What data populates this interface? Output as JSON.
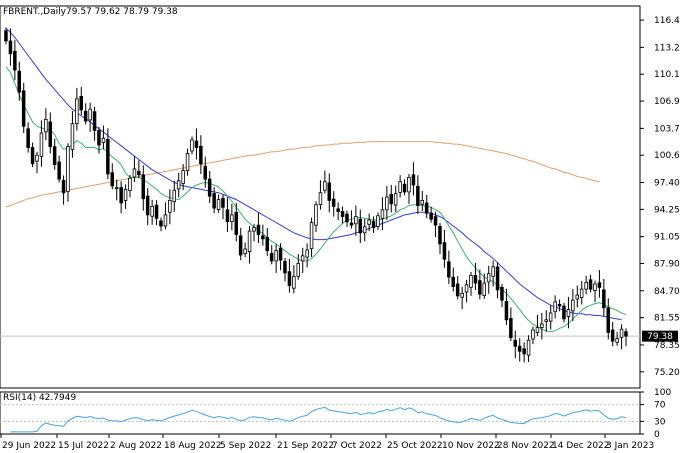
{
  "header": {
    "symbol": "FBRENT.,Daily",
    "ohlc": "79.57 79.62 78.79 79.38"
  },
  "rsi_header": "RSI(14) 42.7949",
  "current_price_label": "79.38",
  "colors": {
    "ma_fast": "#3cb371",
    "ma_slow": "#3a3ad8",
    "ma_long": "#e0a070",
    "rsi_line": "#4aa3df",
    "candle_bull": "#ffffff",
    "candle_bear": "#000000"
  },
  "chart_data": {
    "type": "candlestick",
    "x_labels": [
      "29 Jun 2022",
      "15 Jul 2022",
      "2 Aug 2022",
      "18 Aug 2022",
      "5 Sep 2022",
      "21 Sep 2022",
      "7 Oct 2022",
      "25 Oct 2022",
      "10 Nov 2022",
      "28 Nov 2022",
      "14 Dec 2022",
      "3 Jan 2023"
    ],
    "price_ticks": [
      "116.45",
      "113.25",
      "110.10",
      "106.95",
      "103.75",
      "100.60",
      "97.40",
      "94.25",
      "91.05",
      "87.90",
      "84.70",
      "81.55",
      "78.35",
      "75.20"
    ],
    "price_ylim": [
      73.3,
      118.1
    ],
    "rsi_ticks": [
      "100",
      "70",
      "30",
      "0"
    ],
    "rsi_ylim": [
      0,
      100
    ],
    "last_price": 79.38,
    "closes": [
      114.0,
      112.5,
      110.6,
      108.0,
      104.0,
      101.5,
      99.6,
      100.6,
      103.2,
      104.8,
      101.6,
      99.5,
      97.8,
      96.2,
      101.6,
      104.3,
      107.2,
      105.9,
      104.6,
      106.0,
      103.5,
      101.8,
      102.6,
      98.4,
      97.0,
      96.8,
      95.0,
      96.6,
      97.9,
      99.0,
      98.3,
      95.5,
      93.6,
      94.6,
      93.2,
      92.3,
      93.6,
      95.3,
      96.5,
      97.6,
      98.8,
      100.8,
      102.4,
      101.5,
      99.6,
      97.8,
      95.8,
      94.4,
      95.4,
      94.5,
      92.8,
      93.6,
      91.3,
      88.9,
      89.6,
      91.7,
      92.1,
      91.3,
      90.8,
      89.4,
      88.2,
      89.4,
      88.3,
      86.8,
      85.3,
      86.4,
      87.9,
      88.8,
      89.5,
      92.7,
      94.8,
      96.2,
      97.5,
      95.3,
      94.6,
      94.0,
      93.4,
      92.8,
      92.4,
      93.4,
      91.5,
      92.2,
      93.0,
      92.1,
      93.5,
      94.2,
      95.7,
      94.9,
      96.1,
      97.5,
      96.3,
      98.0,
      97.1,
      94.7,
      95.3,
      93.8,
      93.1,
      92.4,
      90.2,
      88.4,
      86.3,
      85.2,
      84.1,
      84.4,
      85.4,
      86.5,
      85.6,
      84.3,
      85.6,
      86.7,
      87.5,
      84.8,
      83.6,
      81.3,
      79.2,
      78.2,
      77.6,
      77.3,
      78.9,
      80.1,
      80.4,
      80.8,
      81.3,
      82.1,
      83.4,
      82.9,
      81.4,
      82.5,
      83.6,
      84.2,
      84.9,
      85.7,
      84.9,
      85.5,
      85.1,
      82.7,
      79.8,
      78.8,
      79.1,
      80.2,
      79.38
    ],
    "sma_fast": [
      111.0,
      110.3,
      109.0,
      107.7,
      106.5,
      105.5,
      104.5,
      104.0,
      103.8,
      103.6,
      103.6,
      103.0,
      102.0,
      101.3,
      101.5,
      101.8,
      102.3,
      102.0,
      101.5,
      101.5,
      101.5,
      101.2,
      101.4,
      100.9,
      100.4,
      100.0,
      99.5,
      98.5,
      98.0,
      98.0,
      98.0,
      97.7,
      97.4,
      97.0,
      96.6,
      96.1,
      95.8,
      95.6,
      95.5,
      95.4,
      95.8,
      96.3,
      96.8,
      97.1,
      97.3,
      97.4,
      97.3,
      97.1,
      96.9,
      96.4,
      95.8,
      95.2,
      94.5,
      93.8,
      93.1,
      92.6,
      92.2,
      91.8,
      91.4,
      90.9,
      90.5,
      90.2,
      89.8,
      89.4,
      89.0,
      88.7,
      88.4,
      88.2,
      88.2,
      88.5,
      89.0,
      89.6,
      90.3,
      91.0,
      91.6,
      92.1,
      92.6,
      93.0,
      93.1,
      93.3,
      93.3,
      93.2,
      93.1,
      93.0,
      93.0,
      93.1,
      93.3,
      93.5,
      93.8,
      94.2,
      94.4,
      94.7,
      94.8,
      94.8,
      94.7,
      94.6,
      94.5,
      94.2,
      93.9,
      93.2,
      92.3,
      91.5,
      90.5,
      89.6,
      88.7,
      88.0,
      87.4,
      86.8,
      86.3,
      86.0,
      85.8,
      85.3,
      84.9,
      84.4,
      83.8,
      83.2,
      82.5,
      81.8,
      81.2,
      80.8,
      80.5,
      80.2,
      80.0,
      79.9,
      80.0,
      80.3,
      80.5,
      80.9,
      81.4,
      81.9,
      82.4,
      82.8,
      83.0,
      83.2,
      83.3,
      83.1,
      82.8,
      82.6,
      82.4,
      82.1,
      81.9
    ],
    "sma_slow": [
      115.5,
      115.0,
      114.4,
      113.7,
      113.0,
      112.3,
      111.6,
      110.9,
      110.2,
      109.5,
      108.9,
      108.3,
      107.7,
      107.1,
      106.5,
      106.0,
      105.6,
      105.2,
      104.9,
      104.5,
      104.1,
      103.7,
      103.3,
      102.9,
      102.5,
      102.1,
      101.7,
      101.3,
      100.9,
      100.5,
      100.1,
      99.7,
      99.3,
      98.9,
      98.6,
      98.3,
      98.0,
      97.7,
      97.4,
      97.2,
      97.0,
      96.9,
      96.8,
      96.7,
      96.6,
      96.5,
      96.4,
      96.3,
      96.2,
      96.0,
      95.8,
      95.6,
      95.4,
      95.1,
      94.8,
      94.5,
      94.2,
      93.9,
      93.6,
      93.3,
      93.0,
      92.7,
      92.4,
      92.1,
      91.8,
      91.5,
      91.3,
      91.1,
      90.9,
      90.8,
      90.7,
      90.7,
      90.7,
      90.8,
      90.9,
      91.0,
      91.1,
      91.2,
      91.3,
      91.5,
      91.6,
      91.8,
      92.0,
      92.2,
      92.4,
      92.6,
      92.8,
      93.0,
      93.2,
      93.4,
      93.6,
      93.7,
      93.8,
      93.9,
      93.9,
      93.9,
      93.8,
      93.6,
      93.4,
      93.1,
      92.7,
      92.3,
      91.9,
      91.5,
      91.0,
      90.6,
      90.2,
      89.8,
      89.3,
      88.9,
      88.5,
      88.0,
      87.5,
      87.0,
      86.5,
      86.0,
      85.5,
      85.1,
      84.7,
      84.3,
      83.9,
      83.6,
      83.3,
      83.0,
      82.8,
      82.6,
      82.4,
      82.2,
      82.1,
      82.0,
      82.0,
      81.9,
      81.9,
      81.8,
      81.8,
      81.7,
      81.6,
      81.5,
      81.4,
      81.3
    ],
    "sma_long": [
      94.5,
      94.7,
      94.9,
      95.1,
      95.3,
      95.5,
      95.6,
      95.8,
      95.9,
      96.0,
      96.1,
      96.2,
      96.3,
      96.4,
      96.5,
      96.6,
      96.7,
      96.8,
      96.9,
      97.0,
      97.1,
      97.2,
      97.3,
      97.4,
      97.5,
      97.6,
      97.7,
      97.8,
      97.9,
      98.0,
      98.1,
      98.2,
      98.3,
      98.4,
      98.5,
      98.6,
      98.7,
      98.8,
      98.9,
      99.0,
      99.1,
      99.2,
      99.3,
      99.4,
      99.5,
      99.6,
      99.7,
      99.8,
      99.9,
      100.0,
      100.1,
      100.2,
      100.3,
      100.4,
      100.5,
      100.6,
      100.6,
      100.7,
      100.8,
      100.9,
      101.0,
      101.0,
      101.1,
      101.2,
      101.3,
      101.3,
      101.4,
      101.5,
      101.5,
      101.6,
      101.7,
      101.7,
      101.8,
      101.8,
      101.9,
      101.9,
      102.0,
      102.0,
      102.0,
      102.1,
      102.1,
      102.1,
      102.2,
      102.2,
      102.2,
      102.2,
      102.2,
      102.2,
      102.2,
      102.2,
      102.2,
      102.2,
      102.2,
      102.2,
      102.2,
      102.2,
      102.2,
      102.1,
      102.1,
      102.0,
      102.0,
      101.9,
      101.9,
      101.8,
      101.7,
      101.6,
      101.5,
      101.4,
      101.3,
      101.2,
      101.1,
      101.0,
      100.9,
      100.8,
      100.6,
      100.5,
      100.3,
      100.2,
      100.0,
      99.9,
      99.7,
      99.5,
      99.3,
      99.1,
      99.0,
      98.8,
      98.6,
      98.5,
      98.3,
      98.1,
      98.0,
      97.9,
      97.7,
      97.6,
      97.5
    ]
  }
}
